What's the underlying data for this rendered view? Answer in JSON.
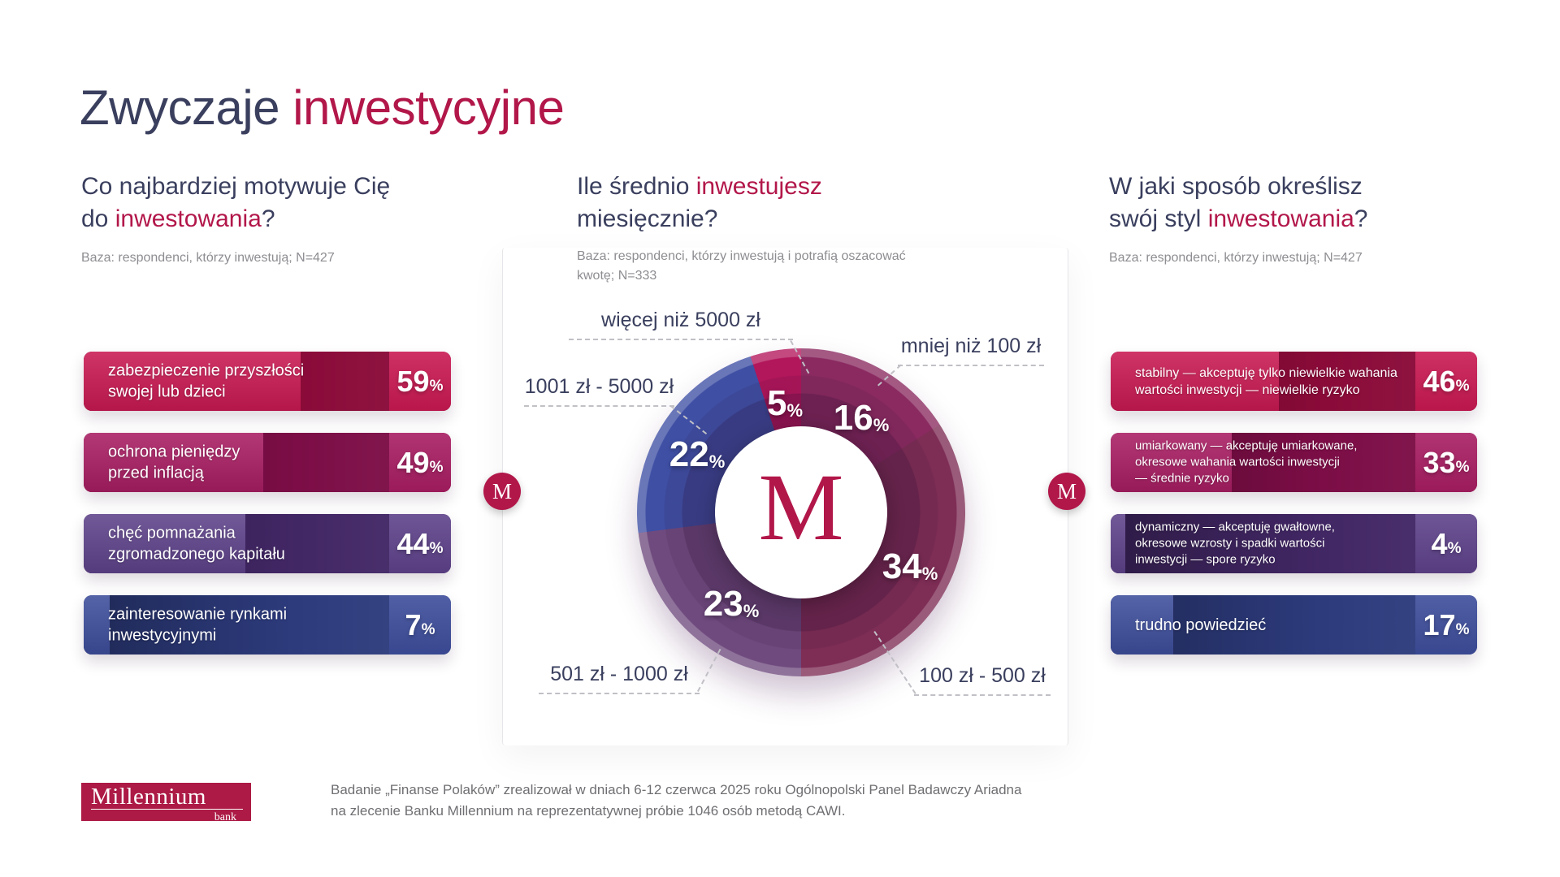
{
  "brand": {
    "accent": "#b2174a",
    "navy": "#3a3f5e",
    "m_symbol": "M"
  },
  "format": {
    "percent_sign": "%"
  },
  "title": {
    "part1": "Zwyczaje ",
    "accent": "inwestycyjne"
  },
  "left": {
    "heading_line1": "Co najbardziej motywuje Cię",
    "heading_line2_pre": "do ",
    "heading_accent": "inwestowania",
    "heading_post": "?",
    "base": "Baza: respondenci, którzy inwestują; N=427",
    "bars": [
      {
        "label": "zabezpieczenie przyszłości\nswojej lub dzieci",
        "value": 59,
        "pct": "59",
        "light": "#c91952",
        "dark": "#8a0a38"
      },
      {
        "label": "ochrona pieniędzy\nprzed inflacją",
        "value": 49,
        "pct": "49",
        "light": "#a81d62",
        "dark": "#7c0d46"
      },
      {
        "label": "chęć pomnażania\nzgromadzonego kapitału",
        "value": 44,
        "pct": "44",
        "light": "#5e428a",
        "dark": "#422765"
      },
      {
        "label": "zainteresowanie rynkami\ninwestycyjnymi",
        "value": 7,
        "pct": "7",
        "light": "#3d4d9b",
        "dark": "#2d3b7d"
      }
    ]
  },
  "middle": {
    "heading_line1_pre": "Ile średnio ",
    "heading_accent": "inwestujesz",
    "heading_line2": "miesięcznie?",
    "base": "Baza: respondenci, którzy inwestują i potrafią oszacować\nkwotę; N=333",
    "slices": [
      {
        "label": "mniej niż 100 zł",
        "value": 16,
        "pct": "16",
        "color": "#8a2a60"
      },
      {
        "label": "100 zł - 500 zł",
        "value": 34,
        "pct": "34",
        "color": "#7e2d55"
      },
      {
        "label": "501 zł - 1000 zł",
        "value": 23,
        "pct": "23",
        "color": "#6f4a7e"
      },
      {
        "label": "1001 zł - 5000 zł",
        "value": 22,
        "pct": "22",
        "color": "#3f4fa4"
      },
      {
        "label": "więcej niż 5000 zł",
        "value": 5,
        "pct": "5",
        "color": "#b2165b"
      }
    ]
  },
  "right": {
    "heading_line1": "W jaki sposób określisz",
    "heading_line2_pre": "swój styl ",
    "heading_accent": "inwestowania",
    "heading_post": "?",
    "base": "Baza: respondenci, którzy inwestują; N=427",
    "bars": [
      {
        "label": "stabilny — akceptuję tylko niewielkie wahania\nwartości inwestycji — niewielkie ryzyko",
        "value": 46,
        "pct": "46",
        "light": "#c91952",
        "dark": "#8a0a38"
      },
      {
        "label": "umiarkowany — akceptuję umiarkowane,\nokresowe wahania wartości inwestycji\n— średnie ryzyko",
        "value": 33,
        "pct": "33",
        "light": "#a81d62",
        "dark": "#7c0d46"
      },
      {
        "label": "dynamiczny — akceptuję gwałtowne,\nokresowe wzrosty i spadki wartości\ninwestycji — spore ryzyko",
        "value": 4,
        "pct": "4",
        "light": "#5e428a",
        "dark": "#422765"
      },
      {
        "label": "trudno powiedzieć",
        "value": 17,
        "pct": "17",
        "light": "#3d4d9b",
        "dark": "#2d3b7d"
      }
    ]
  },
  "footer": {
    "logo_name": "Millennium",
    "logo_sub": "bank",
    "text": "Badanie „Finanse Polaków” zrealizował w dniach 6-12 czerwca 2025 roku Ogólnopolski Panel Badawczy Ariadna\nna zlecenie Banku Millennium na reprezentatywnej próbie 1046 osób metodą CAWI."
  },
  "chart_data": [
    {
      "type": "bar",
      "title": "Co najbardziej motywuje Cię do inwestowania?",
      "note": "Baza: respondenci, którzy inwestują; N=427",
      "categories": [
        "zabezpieczenie przyszłości swojej lub dzieci",
        "ochrona pieniędzy przed inflacją",
        "chęć pomnażania zgromadzonego kapitału",
        "zainteresowanie rynkami inwestycyjnymi"
      ],
      "values": [
        59,
        49,
        44,
        7
      ],
      "unit": "%"
    },
    {
      "type": "pie",
      "title": "Ile średnio inwestujesz miesięcznie?",
      "note": "Baza: respondenci, którzy inwestują i potrafią oszacować kwotę; N=333",
      "categories": [
        "mniej niż 100 zł",
        "100 zł - 500 zł",
        "501 zł - 1000 zł",
        "1001 zł - 5000 zł",
        "więcej niż 5000 zł"
      ],
      "values": [
        16,
        34,
        23,
        22,
        5
      ],
      "unit": "%"
    },
    {
      "type": "bar",
      "title": "W jaki sposób określisz swój styl inwestowania?",
      "note": "Baza: respondenci, którzy inwestują; N=427",
      "categories": [
        "stabilny — akceptuję tylko niewielkie wahania wartości inwestycji — niewielkie ryzyko",
        "umiarkowany — akceptuję umiarkowane, okresowe wahania wartości inwestycji — średnie ryzyko",
        "dynamiczny — akceptuję gwałtowne, okresowe wzrosty i spadki wartości inwestycji — spore ryzyko",
        "trudno powiedzieć"
      ],
      "values": [
        46,
        33,
        4,
        17
      ],
      "unit": "%"
    }
  ]
}
